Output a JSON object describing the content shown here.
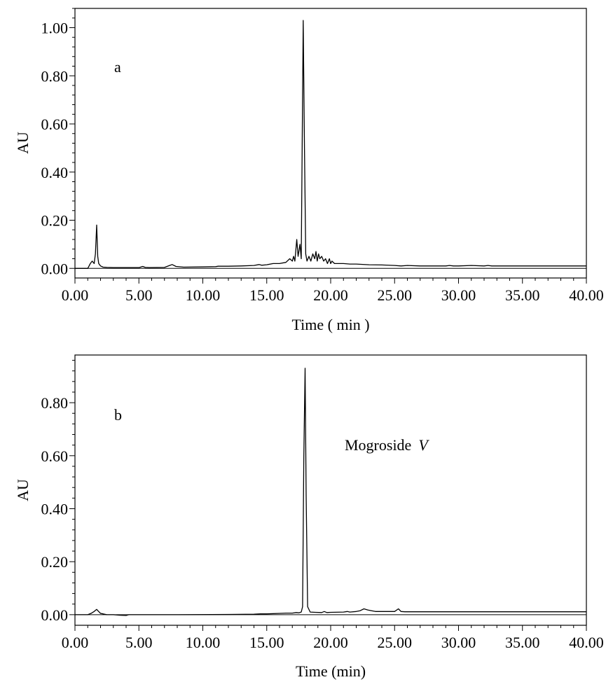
{
  "chart_data": [
    {
      "type": "line",
      "panel_label": "a",
      "xlabel": "Time ( min )",
      "ylabel": "AU",
      "xlim": [
        0,
        40
      ],
      "ylim": [
        -0.04,
        1.08
      ],
      "x_ticks": [
        0,
        5,
        10,
        15,
        20,
        25,
        30,
        35,
        40
      ],
      "x_tick_labels": [
        "0.00",
        "5.00",
        "10.00",
        "15.00",
        "20.00",
        "25.00",
        "30.00",
        "35.00",
        "40.00"
      ],
      "y_ticks": [
        0,
        0.2,
        0.4,
        0.6,
        0.8,
        1.0
      ],
      "y_tick_labels": [
        "0.00",
        "0.20",
        "0.40",
        "0.60",
        "0.80",
        "1.00"
      ],
      "grid": false,
      "annotations": [],
      "series": [
        {
          "x": [
            0.0,
            1.0,
            1.2,
            1.35,
            1.5,
            1.6,
            1.7,
            1.78,
            1.86,
            2.0,
            2.2,
            2.5,
            3.0,
            4.0,
            5.0,
            5.3,
            5.5,
            5.8,
            7.0,
            7.4,
            7.6,
            7.9,
            8.5,
            10.0,
            11.0,
            11.2,
            12.0,
            13.0,
            14.0,
            14.4,
            14.6,
            15.0,
            15.5,
            16.0,
            16.5,
            16.8,
            17.0,
            17.1,
            17.2,
            17.35,
            17.45,
            17.6,
            17.7,
            17.85,
            17.95,
            18.05,
            18.15,
            18.3,
            18.45,
            18.6,
            18.75,
            18.85,
            18.95,
            19.05,
            19.15,
            19.3,
            19.45,
            19.6,
            19.75,
            19.9,
            20.0,
            20.1,
            20.3,
            20.5,
            21.0,
            21.5,
            22.0,
            23.0,
            24.0,
            25.0,
            25.5,
            26.0,
            27.0,
            28.0,
            29.0,
            29.3,
            29.6,
            30.0,
            31.0,
            32.0,
            32.3,
            32.6,
            33.0,
            35.0,
            38.0,
            40.0
          ],
          "values": [
            0.0,
            0.0,
            0.02,
            0.03,
            0.02,
            0.06,
            0.18,
            0.05,
            0.02,
            0.01,
            0.005,
            0.004,
            0.003,
            0.003,
            0.003,
            0.008,
            0.004,
            0.003,
            0.004,
            0.012,
            0.016,
            0.008,
            0.005,
            0.006,
            0.007,
            0.009,
            0.009,
            0.01,
            0.012,
            0.016,
            0.013,
            0.015,
            0.02,
            0.02,
            0.025,
            0.04,
            0.03,
            0.05,
            0.03,
            0.12,
            0.05,
            0.1,
            0.04,
            1.03,
            0.5,
            0.06,
            0.03,
            0.05,
            0.03,
            0.06,
            0.04,
            0.07,
            0.03,
            0.06,
            0.04,
            0.05,
            0.03,
            0.04,
            0.02,
            0.04,
            0.02,
            0.03,
            0.02,
            0.02,
            0.02,
            0.018,
            0.018,
            0.015,
            0.014,
            0.012,
            0.01,
            0.012,
            0.01,
            0.01,
            0.01,
            0.012,
            0.01,
            0.01,
            0.012,
            0.01,
            0.012,
            0.01,
            0.01,
            0.01,
            0.01,
            0.01
          ]
        }
      ]
    },
    {
      "type": "line",
      "panel_label": "b",
      "xlabel": "Time (min)",
      "ylabel": "AU",
      "xlim": [
        0,
        40
      ],
      "ylim": [
        -0.04,
        0.98
      ],
      "x_ticks": [
        0,
        5,
        10,
        15,
        20,
        25,
        30,
        35,
        40
      ],
      "x_tick_labels": [
        "0.00",
        "5.00",
        "10.00",
        "15.00",
        "20.00",
        "25.00",
        "30.00",
        "35.00",
        "40.00"
      ],
      "y_ticks": [
        0,
        0.2,
        0.4,
        0.6,
        0.8
      ],
      "y_tick_labels": [
        "0.00",
        "0.20",
        "0.40",
        "0.60",
        "0.80"
      ],
      "grid": false,
      "annotations": [
        {
          "text": "Mogroside",
          "italic_suffix": "V",
          "x": 21.3,
          "y": 0.7
        }
      ],
      "series": [
        {
          "x": [
            0.0,
            1.0,
            1.3,
            1.5,
            1.7,
            1.85,
            2.0,
            2.2,
            2.5,
            3.0,
            3.5,
            4.0,
            4.2,
            5.0,
            8.0,
            12.0,
            14.0,
            14.5,
            15.0,
            16.0,
            16.5,
            17.0,
            17.3,
            17.5,
            17.7,
            17.8,
            17.9,
            18.0,
            18.08,
            18.2,
            18.4,
            18.8,
            19.3,
            19.5,
            19.7,
            20.0,
            21.0,
            21.3,
            21.5,
            22.0,
            22.3,
            22.6,
            22.9,
            23.2,
            23.5,
            24.0,
            25.0,
            25.3,
            25.5,
            25.8,
            26.5,
            28.0,
            30.0,
            32.0,
            35.0,
            38.0,
            40.0
          ],
          "values": [
            0.0,
            0.0,
            0.006,
            0.012,
            0.02,
            0.012,
            0.005,
            0.003,
            0.0,
            0.0,
            -0.002,
            -0.003,
            0.0,
            0.0,
            0.0,
            0.001,
            0.002,
            0.003,
            0.003,
            0.005,
            0.006,
            0.006,
            0.008,
            0.007,
            0.01,
            0.03,
            0.6,
            0.93,
            0.45,
            0.03,
            0.01,
            0.009,
            0.008,
            0.012,
            0.008,
            0.009,
            0.01,
            0.012,
            0.01,
            0.012,
            0.015,
            0.022,
            0.018,
            0.015,
            0.012,
            0.012,
            0.012,
            0.022,
            0.012,
            0.011,
            0.011,
            0.011,
            0.011,
            0.011,
            0.011,
            0.011,
            0.011
          ]
        }
      ]
    }
  ]
}
